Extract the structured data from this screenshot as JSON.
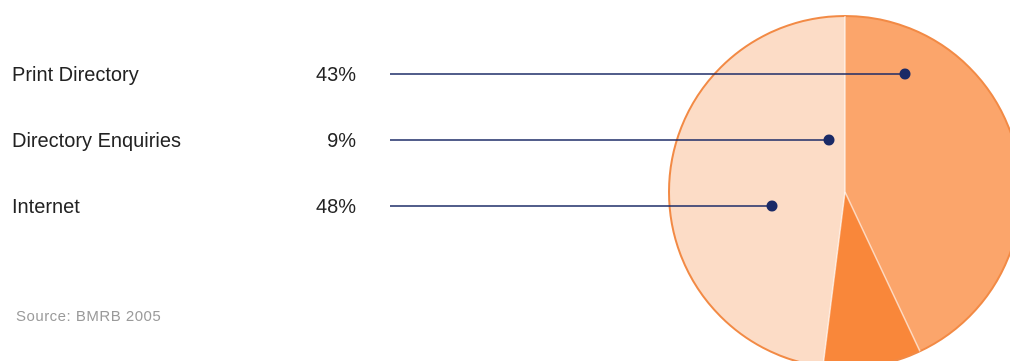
{
  "chart_data": {
    "type": "pie",
    "title": "",
    "categories": [
      "Print Directory",
      "Directory Enquiries",
      "Internet"
    ],
    "values": [
      43,
      9,
      48
    ],
    "value_labels": [
      "43%",
      "9%",
      "48%"
    ],
    "colors": [
      "#fba56b",
      "#f9873a",
      "#fcdcc6"
    ],
    "edge_color": "#f28a45",
    "leader_color": "#1a2a66",
    "legend_position": "left",
    "source": "Source: BMRB 2005"
  }
}
